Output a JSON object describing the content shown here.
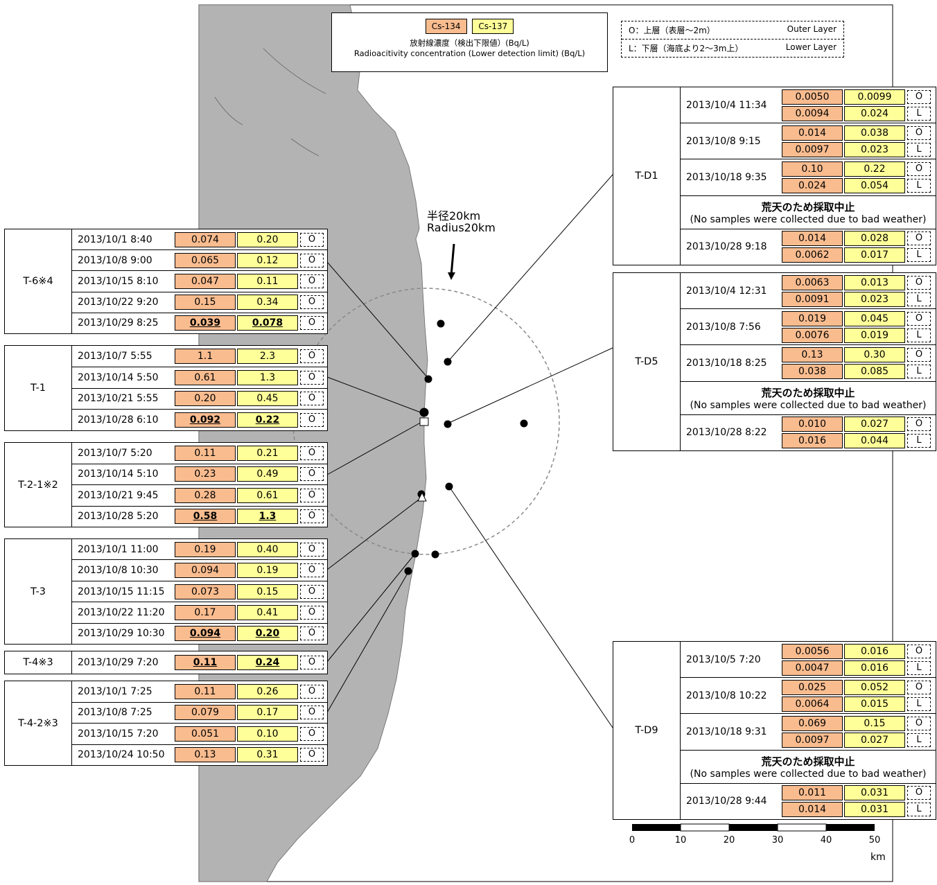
{
  "legend": {
    "cs134": "Cs-134",
    "cs137": "Cs-137",
    "line1": "放射線濃度（検出下限値）(Bq/L)",
    "line2": "Radioacitivity concentration (Lower detection limit) (Bq/L)"
  },
  "layer_key": {
    "outer_jp": "O：上層（表層～2m）",
    "outer_en": "Outer Layer",
    "lower_jp": "L：下層（海底より2～3m上）",
    "lower_en": "Lower Layer"
  },
  "radius_label": {
    "jp": "半径20km",
    "en": "Radius20km"
  },
  "colors": {
    "cs134": "#f9bc8f",
    "cs137": "#ffff99",
    "land": "#b3b3b3"
  },
  "left_sites": [
    {
      "name": "T-6※4",
      "rows": [
        {
          "date": "2013/10/1 8:40",
          "cs134": "0.074",
          "cs137": "0.20",
          "layer": "O",
          "bold": false
        },
        {
          "date": "2013/10/8 9:00",
          "cs134": "0.065",
          "cs137": "0.12",
          "layer": "O",
          "bold": false
        },
        {
          "date": "2013/10/15 8:10",
          "cs134": "0.047",
          "cs137": "0.11",
          "layer": "O",
          "bold": false
        },
        {
          "date": "2013/10/22 9:20",
          "cs134": "0.15",
          "cs137": "0.34",
          "layer": "O",
          "bold": false
        },
        {
          "date": "2013/10/29 8:25",
          "cs134": "0.039",
          "cs137": "0.078",
          "layer": "O",
          "bold": true
        }
      ]
    },
    {
      "name": "T-1",
      "rows": [
        {
          "date": "2013/10/7 5:55",
          "cs134": "1.1",
          "cs137": "2.3",
          "layer": "O",
          "bold": false
        },
        {
          "date": "2013/10/14 5:50",
          "cs134": "0.61",
          "cs137": "1.3",
          "layer": "O",
          "bold": false
        },
        {
          "date": "2013/10/21 5:55",
          "cs134": "0.20",
          "cs137": "0.45",
          "layer": "O",
          "bold": false
        },
        {
          "date": "2013/10/28 6:10",
          "cs134": "0.092",
          "cs137": "0.22",
          "layer": "O",
          "bold": true
        }
      ]
    },
    {
      "name": "T-2-1※2",
      "rows": [
        {
          "date": "2013/10/7 5:20",
          "cs134": "0.11",
          "cs137": "0.21",
          "layer": "O",
          "bold": false
        },
        {
          "date": "2013/10/14 5:10",
          "cs134": "0.23",
          "cs137": "0.49",
          "layer": "O",
          "bold": false
        },
        {
          "date": "2013/10/21 9:45",
          "cs134": "0.28",
          "cs137": "0.61",
          "layer": "O",
          "bold": false
        },
        {
          "date": "2013/10/28 5:20",
          "cs134": "0.58",
          "cs137": "1.3",
          "layer": "O",
          "bold": true
        }
      ]
    },
    {
      "name": "T-3",
      "rows": [
        {
          "date": "2013/10/1 11:00",
          "cs134": "0.19",
          "cs137": "0.40",
          "layer": "O",
          "bold": false
        },
        {
          "date": "2013/10/8 10:30",
          "cs134": "0.094",
          "cs137": "0.19",
          "layer": "O",
          "bold": false
        },
        {
          "date": "2013/10/15 11:15",
          "cs134": "0.073",
          "cs137": "0.15",
          "layer": "O",
          "bold": false
        },
        {
          "date": "2013/10/22 11:20",
          "cs134": "0.17",
          "cs137": "0.41",
          "layer": "O",
          "bold": false
        },
        {
          "date": "2013/10/29 10:30",
          "cs134": "0.094",
          "cs137": "0.20",
          "layer": "O",
          "bold": true
        }
      ]
    },
    {
      "name": "T-4※3",
      "rows": [
        {
          "date": "2013/10/29 7:20",
          "cs134": "0.11",
          "cs137": "0.24",
          "layer": "O",
          "bold": true
        }
      ]
    },
    {
      "name": "T-4-2※3",
      "rows": [
        {
          "date": "2013/10/1 7:25",
          "cs134": "0.11",
          "cs137": "0.26",
          "layer": "O",
          "bold": false
        },
        {
          "date": "2013/10/8 7:25",
          "cs134": "0.079",
          "cs137": "0.17",
          "layer": "O",
          "bold": false
        },
        {
          "date": "2013/10/15 7:20",
          "cs134": "0.051",
          "cs137": "0.10",
          "layer": "O",
          "bold": false
        },
        {
          "date": "2013/10/24 10:50",
          "cs134": "0.13",
          "cs137": "0.31",
          "layer": "O",
          "bold": false
        }
      ]
    }
  ],
  "right_sites": [
    {
      "name": "T-D1",
      "entries": [
        {
          "date": "2013/10/4 11:34",
          "O": [
            "0.0050",
            "0.0099"
          ],
          "L": [
            "0.0094",
            "0.024"
          ]
        },
        {
          "date": "2013/10/8 9:15",
          "O": [
            "0.014",
            "0.038"
          ],
          "L": [
            "0.0097",
            "0.023"
          ]
        },
        {
          "date": "2013/10/18 9:35",
          "O": [
            "0.10",
            "0.22"
          ],
          "L": [
            "0.024",
            "0.054"
          ]
        },
        {
          "note_jp": "荒天のため採取中止",
          "note_en": "(No samples were collected due to bad weather)"
        },
        {
          "date": "2013/10/28 9:18",
          "O": [
            "0.014",
            "0.028"
          ],
          "L": [
            "0.0062",
            "0.017"
          ]
        }
      ]
    },
    {
      "name": "T-D5",
      "entries": [
        {
          "date": "2013/10/4 12:31",
          "O": [
            "0.0063",
            "0.013"
          ],
          "L": [
            "0.0091",
            "0.023"
          ]
        },
        {
          "date": "2013/10/8 7:56",
          "O": [
            "0.019",
            "0.045"
          ],
          "L": [
            "0.0076",
            "0.019"
          ]
        },
        {
          "date": "2013/10/18 8:25",
          "O": [
            "0.13",
            "0.30"
          ],
          "L": [
            "0.038",
            "0.085"
          ]
        },
        {
          "note_jp": "荒天のため採取中止",
          "note_en": "(No samples were collected due to bad weather)"
        },
        {
          "date": "2013/10/28 8:22",
          "O": [
            "0.010",
            "0.027"
          ],
          "L": [
            "0.016",
            "0.044"
          ]
        }
      ]
    },
    {
      "name": "T-D9",
      "entries": [
        {
          "date": "2013/10/5 7:20",
          "O": [
            "0.0056",
            "0.016"
          ],
          "L": [
            "0.0047",
            "0.016"
          ]
        },
        {
          "date": "2013/10/8 10:22",
          "O": [
            "0.025",
            "0.052"
          ],
          "L": [
            "0.0064",
            "0.015"
          ]
        },
        {
          "date": "2013/10/18 9:31",
          "O": [
            "0.069",
            "0.15"
          ],
          "L": [
            "0.0097",
            "0.027"
          ]
        },
        {
          "note_jp": "荒天のため採取中止",
          "note_en": "(No samples were collected due to bad weather)"
        },
        {
          "date": "2013/10/28 9:44",
          "O": [
            "0.011",
            "0.031"
          ],
          "L": [
            "0.014",
            "0.031"
          ]
        }
      ]
    }
  ],
  "layer_codes": {
    "outer": "O",
    "lower": "L"
  },
  "scale_bar": {
    "ticks": [
      "0",
      "10",
      "20",
      "30",
      "40",
      "50"
    ],
    "unit": "km"
  }
}
